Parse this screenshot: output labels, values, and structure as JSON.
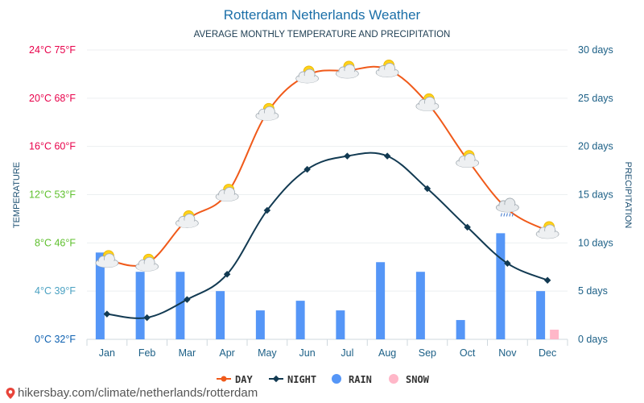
{
  "chart_data": {
    "type": "combo",
    "title": "Rotterdam Netherlands Weather",
    "subtitle": "AVERAGE MONTHLY TEMPERATURE AND PRECIPITATION",
    "y_left_label": "TEMPERATURE",
    "y_right_label": "PRECIPITATION",
    "y_left_ticks": [
      "0°C 32°F",
      "4°C 39°F",
      "8°C 46°F",
      "12°C 53°F",
      "16°C 60°F",
      "20°C 68°F",
      "24°C 75°F"
    ],
    "y_left_range": [
      0,
      24
    ],
    "y_right_ticks": [
      "0 days",
      "5 days",
      "10 days",
      "15 days",
      "20 days",
      "25 days",
      "30 days"
    ],
    "y_right_range": [
      0,
      30
    ],
    "categories": [
      "Jan",
      "Feb",
      "Mar",
      "Apr",
      "May",
      "Jun",
      "Jul",
      "Aug",
      "Sep",
      "Oct",
      "Nov",
      "Dec"
    ],
    "series": [
      {
        "name": "DAY",
        "kind": "line",
        "axis": "left",
        "color": "#f05a1a",
        "values": [
          6.6,
          6.3,
          9.9,
          12.1,
          18.8,
          21.9,
          22.3,
          22.4,
          19.6,
          14.9,
          10.8,
          9.0
        ]
      },
      {
        "name": "NIGHT",
        "kind": "line",
        "axis": "left",
        "color": "#123a52",
        "values": [
          2.1,
          1.8,
          3.3,
          5.4,
          10.7,
          14.1,
          15.2,
          15.2,
          12.5,
          9.3,
          6.3,
          4.9
        ]
      },
      {
        "name": "RAIN",
        "kind": "bar",
        "axis": "right",
        "color": "#5596f7",
        "values": [
          9,
          7,
          7,
          5,
          3,
          4,
          3,
          8,
          7,
          2,
          11,
          5
        ]
      },
      {
        "name": "SNOW",
        "kind": "bar",
        "axis": "right",
        "color": "#ffb7c8",
        "values": [
          0,
          0,
          0,
          0,
          0,
          0,
          0,
          0,
          0,
          0,
          0,
          1
        ]
      }
    ],
    "weather_icons": [
      "partly-cloudy",
      "partly-cloudy",
      "partly-cloudy",
      "partly-cloudy",
      "partly-cloudy",
      "partly-cloudy",
      "partly-cloudy",
      "partly-cloudy",
      "partly-cloudy",
      "partly-cloudy",
      "rain-cloud",
      "partly-cloudy"
    ],
    "legend": [
      "DAY",
      "NIGHT",
      "RAIN",
      "SNOW"
    ],
    "legend_position": "bottom-center",
    "grid": true
  },
  "colors": {
    "title": "#1b6fa8",
    "left_tick_colors": [
      "#0b5fb0",
      "#4aa1c2",
      "#5fc02e",
      "#5fc02e",
      "#e8004a",
      "#e8004a",
      "#e8004a"
    ],
    "right_tick": "#1b5f86",
    "month_label": "#1b5f86",
    "axis_title": "#1b4f72"
  },
  "footer": {
    "url": "hikersbay.com/climate/netherlands/rotterdam"
  }
}
